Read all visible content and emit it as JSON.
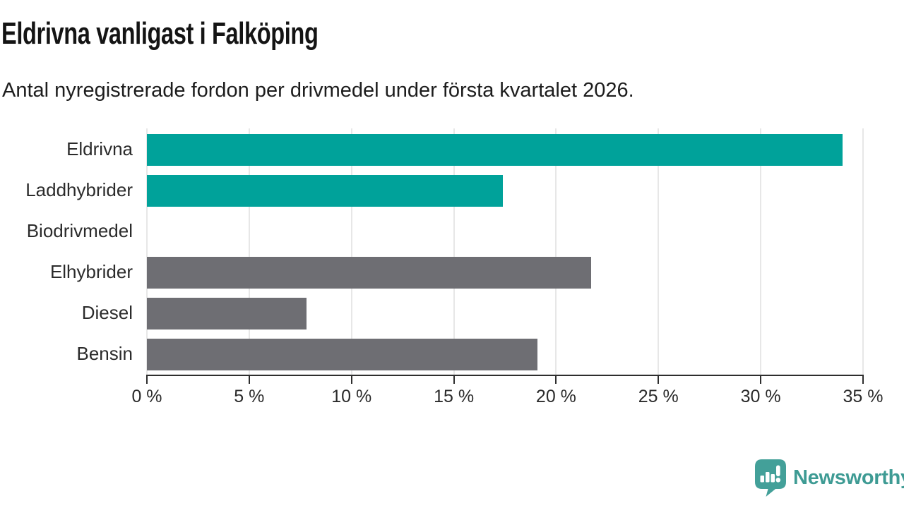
{
  "header": {
    "title": "Eldrivna vanligast i Falköping",
    "subtitle": "Antal nyregistrerade fordon per drivmedel under första kvartalet 2026."
  },
  "chart_data": {
    "type": "bar",
    "orientation": "horizontal",
    "title": "Eldrivna vanligast i Falköping",
    "subtitle": "Antal nyregistrerade fordon per drivmedel under första kvartalet 2026.",
    "categories": [
      "Eldrivna",
      "Laddhybrider",
      "Biodrivmedel",
      "Elhybrider",
      "Diesel",
      "Bensin"
    ],
    "values": [
      34,
      17.4,
      0,
      21.7,
      7.8,
      19.1
    ],
    "unit": "%",
    "bar_colors": [
      "#00a29a",
      "#00a29a",
      "#6e6e73",
      "#6e6e73",
      "#6e6e73",
      "#6e6e73"
    ],
    "highlight_color": "#00a29a",
    "default_color": "#6e6e73",
    "xlim": [
      0,
      35
    ],
    "xticks": [
      0,
      5,
      10,
      15,
      20,
      25,
      30,
      35
    ],
    "xtick_labels": [
      "0 %",
      "5 %",
      "10 %",
      "15 %",
      "20 %",
      "25 %",
      "30 %",
      "35 %"
    ],
    "grid": "vertical",
    "xlabel": "",
    "ylabel": "",
    "legend": "none"
  },
  "footer": {
    "brand": "Newsworthy",
    "brand_color": "#3e9b94",
    "logo_icon": "newsworthy-speech-bubble-bar-chart-icon",
    "logo_icon_color": "#43a099"
  },
  "colors": {
    "background": "#ffffff",
    "grid": "#e7e7e7",
    "axis": "#2e2e2e",
    "text": "#2b2b2b"
  }
}
